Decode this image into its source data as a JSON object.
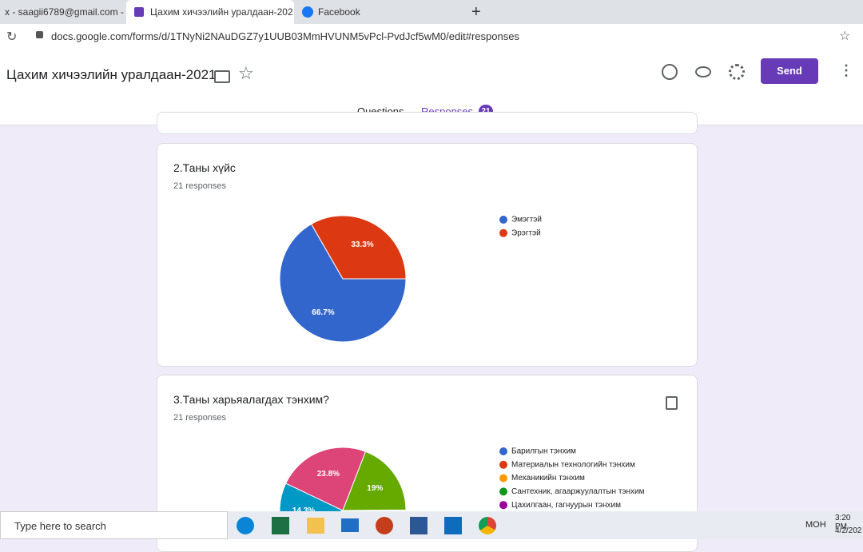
{
  "browser": {
    "tabs": [
      "x - saagii6789@gmail.com -",
      "Цахим хичээлийн уралдаан-202",
      "Facebook"
    ],
    "url": "docs.google.com/forms/d/1TNyNi2NAuDGZ7y1UUB03MmHVUNM5vPcl-PvdJcf5wM0/edit#responses"
  },
  "header": {
    "title": "Цахим хичээлийн уралдаан-2021",
    "send": "Send",
    "tabs": [
      "Questions",
      "Responses"
    ],
    "response_count": 21
  },
  "chart_data": [
    {
      "type": "pie",
      "title": "2.Таны хүйс",
      "subtitle": "21 responses",
      "categories": [
        "Эмэгтэй",
        "Эрэгтэй"
      ],
      "colors": [
        "#3366cc",
        "#dc3912"
      ],
      "values": [
        66.7,
        33.3
      ],
      "value_labels": [
        "66.7%",
        "33.3%"
      ]
    },
    {
      "type": "pie",
      "title": "3.Таны харьяалагдах тэнхим?",
      "subtitle": "21 responses",
      "legend": [
        {
          "name": "Барилгын тэнхим",
          "color": "#3366cc"
        },
        {
          "name": "Материалын технологийн тэнхим",
          "color": "#dc3912"
        },
        {
          "name": "Механикийн тэнхим",
          "color": "#ff9900"
        },
        {
          "name": "Сантехник, агааржуулалтын тэнхим",
          "color": "#109618"
        },
        {
          "name": "Цахилгаан, гагнуурын тэнхим",
          "color": "#990099"
        }
      ],
      "slices": [
        {
          "value": 14.3,
          "label": "14.3%",
          "color": "#0099c6"
        },
        {
          "value": 23.8,
          "label": "23.8%",
          "color": "#dd4477"
        },
        {
          "value": 19,
          "label": "19%",
          "color": "#66aa00"
        }
      ]
    }
  ],
  "taskbar": {
    "search": "Type here to search",
    "lang": "МОН",
    "time": "3:20 PM",
    "date": "4/2/202"
  }
}
